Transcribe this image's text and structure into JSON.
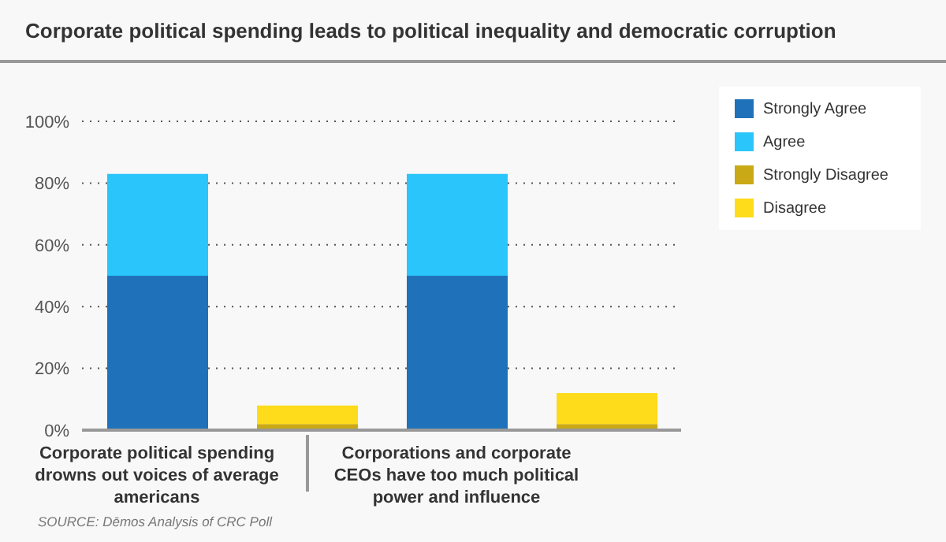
{
  "chart_data": {
    "type": "bar",
    "title": "Corporate political spending leads to political inequality and democratic corruption",
    "categories": [
      "Corporate political spending drowns out voices of average americans",
      null,
      "Corporations and corporate CEOs have too much political power and influence",
      null
    ],
    "stacked": true,
    "series": [
      {
        "name": "Strongly Agree",
        "color": "#1f72b9",
        "values": [
          50,
          null,
          50,
          null
        ]
      },
      {
        "name": "Agree",
        "color": "#2ac5fb",
        "values": [
          33,
          null,
          33,
          null
        ]
      },
      {
        "name": "Strongly Disagree",
        "color": "#c9a915",
        "values": [
          null,
          2,
          null,
          2
        ]
      },
      {
        "name": "Disagree",
        "color": "#fedb1b",
        "values": [
          null,
          6,
          null,
          10
        ]
      }
    ],
    "ylim": [
      0,
      100
    ],
    "yticks": [
      {
        "value": 0,
        "label": "0%"
      },
      {
        "value": 20,
        "label": "20%"
      },
      {
        "value": 40,
        "label": "40%"
      },
      {
        "value": 60,
        "label": "60%"
      },
      {
        "value": 80,
        "label": "80%"
      },
      {
        "value": 100,
        "label": "100%"
      }
    ],
    "grid": "y",
    "legend": "top right",
    "annotations": [
      "SOURCE: Dēmos Analysis of CRC Poll"
    ]
  }
}
